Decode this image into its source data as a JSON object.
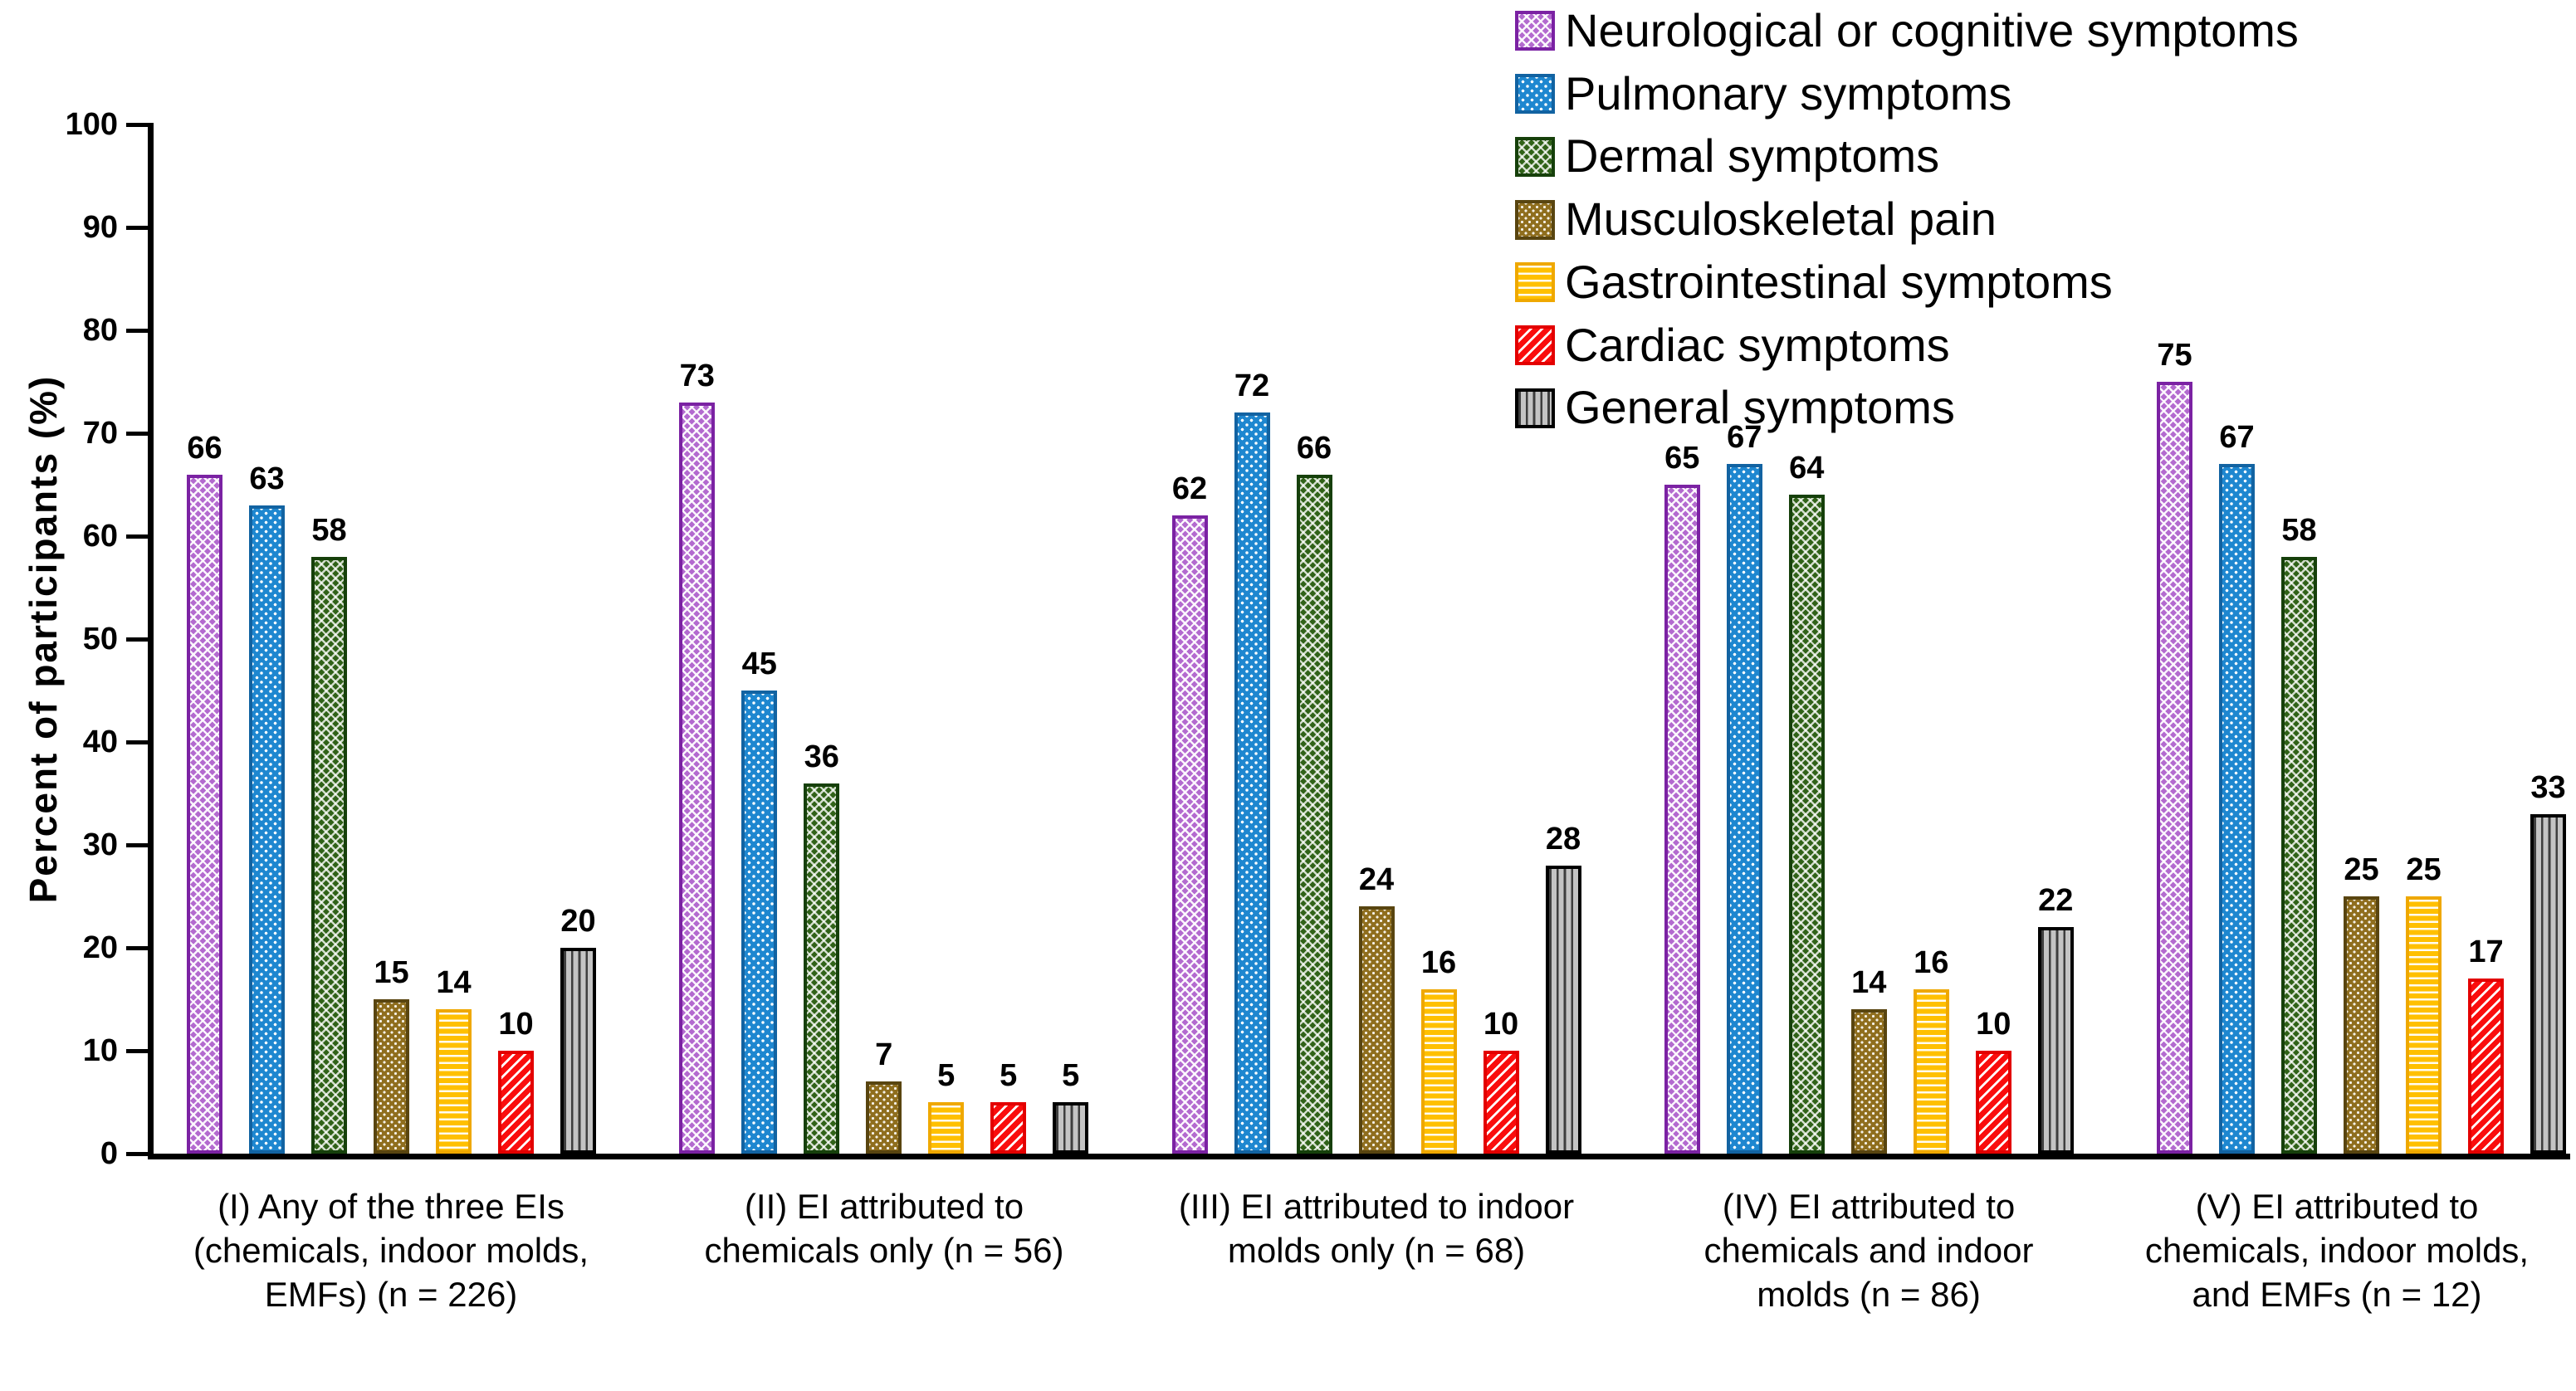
{
  "chart_data": {
    "type": "bar",
    "title": "",
    "ylabel": "Percent of participants (%)",
    "xlabel": "",
    "ylim": [
      0,
      100
    ],
    "yticks": [
      0,
      10,
      20,
      30,
      40,
      50,
      60,
      70,
      80,
      90,
      100
    ],
    "grid": false,
    "legend_position": "top-right",
    "background_color": "#FFFFFF",
    "categories": [
      "(I) Any of the three EIs (chemicals, indoor molds, EMFs) (n = 226)",
      "(II) EI attributed to chemicals only (n = 56)",
      "(III) EI attributed to indoor molds only (n = 68)",
      "(IV) EI attributed to chemicals and indoor molds (n = 86)",
      "(V) EI attributed to chemicals, indoor molds, and EMFs (n = 12)"
    ],
    "category_label_lines": [
      [
        "(I) Any of the three EIs",
        "(chemicals, indoor molds,",
        "EMFs) (n = 226)"
      ],
      [
        "(II) EI attributed to",
        "chemicals only (n = 56)"
      ],
      [
        "(III) EI attributed to indoor",
        "molds only (n = 68)"
      ],
      [
        "(IV) EI attributed to",
        "chemicals and indoor",
        "molds (n = 86)"
      ],
      [
        "(V) EI attributed to",
        "chemicals, indoor molds,",
        "and EMFs (n = 12)"
      ]
    ],
    "series": [
      {
        "name": "Neurological or cognitive symptoms",
        "values": [
          66,
          73,
          62,
          65,
          75
        ],
        "fill_color": "#B36ACF",
        "border_color": "#7B22A3",
        "pattern": "diagonal-crosshatch"
      },
      {
        "name": "Pulmonary symptoms",
        "values": [
          63,
          45,
          72,
          67,
          67
        ],
        "fill_color": "#1E87D0",
        "border_color": "#1263A2",
        "pattern": "dots"
      },
      {
        "name": "Dermal symptoms",
        "values": [
          58,
          36,
          66,
          64,
          58
        ],
        "fill_color": "#306218",
        "border_color": "#16400B",
        "pattern": "diagonal-crosshatch"
      },
      {
        "name": "Musculoskeletal pain",
        "values": [
          15,
          7,
          24,
          14,
          25
        ],
        "fill_color": "#8F6E1E",
        "border_color": "#594510",
        "pattern": "dots"
      },
      {
        "name": "Gastrointestinal symptoms",
        "values": [
          14,
          5,
          16,
          16,
          25
        ],
        "fill_color": "#FFC000",
        "border_color": "#EFA800",
        "pattern": "horizontal-stripes"
      },
      {
        "name": "Cardiac symptoms",
        "values": [
          10,
          5,
          10,
          10,
          17
        ],
        "fill_color": "#FA0D0D",
        "border_color": "#E30000",
        "pattern": "diagonal-stripes"
      },
      {
        "name": "General symptoms",
        "values": [
          20,
          5,
          28,
          22,
          33
        ],
        "fill_color": "#C4C4C4",
        "border_color": "#000000",
        "pattern": "vertical-stripes"
      }
    ]
  }
}
